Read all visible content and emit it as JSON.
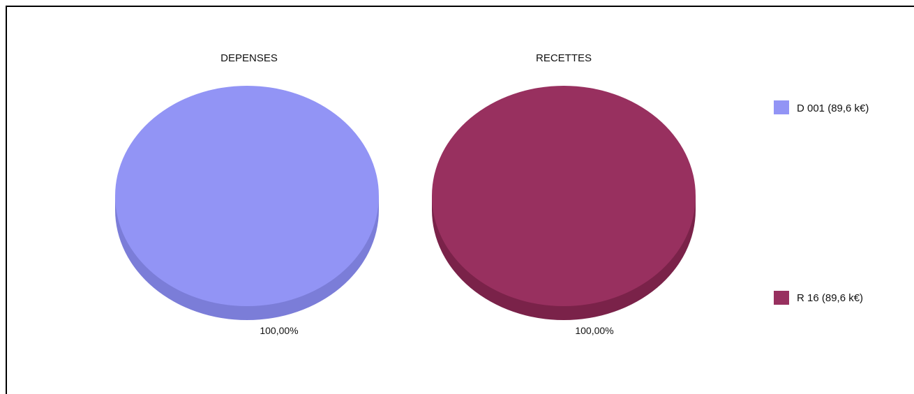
{
  "chart_data": [
    {
      "type": "pie",
      "title": "DEPENSES",
      "slices": [
        {
          "label": "D 001 (89,6 k€)",
          "value": 89.6,
          "percent_label": "100,00%",
          "color": "#9294f5",
          "side_color": "#7b7dd8"
        }
      ]
    },
    {
      "type": "pie",
      "title": "RECETTES",
      "slices": [
        {
          "label": "R 16 (89,6 k€)",
          "value": 89.6,
          "percent_label": "100,00%",
          "color": "#98305f",
          "side_color": "#7a2249"
        }
      ]
    }
  ],
  "legend": {
    "placement": "right",
    "items": [
      {
        "label": "D 001 (89,6 k€)",
        "color": "#9294f5"
      },
      {
        "label": "R 16 (89,6 k€)",
        "color": "#98305f"
      }
    ]
  }
}
